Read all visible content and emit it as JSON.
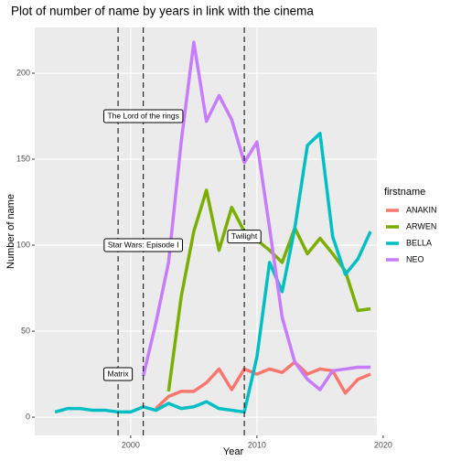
{
  "chart_data": {
    "type": "line",
    "title": "Plot of number of name by years in link with the cinema",
    "x_label": "Year",
    "y_label": "Number of name",
    "legend_title": "firstname",
    "x": [
      1994,
      1995,
      1996,
      1997,
      1998,
      1999,
      2000,
      2001,
      2002,
      2003,
      2004,
      2005,
      2006,
      2007,
      2008,
      2009,
      2010,
      2011,
      2012,
      2013,
      2014,
      2015,
      2016,
      2017,
      2018,
      2019
    ],
    "series": [
      {
        "name": "ANAKIN",
        "color": "#F8766D",
        "values": [
          null,
          null,
          null,
          null,
          null,
          null,
          null,
          null,
          5,
          12,
          15,
          15,
          20,
          28,
          16,
          28,
          25,
          28,
          26,
          32,
          25,
          28,
          27,
          14,
          22,
          25
        ]
      },
      {
        "name": "ARWEN",
        "color": "#7CAE00",
        "values": [
          null,
          null,
          null,
          null,
          null,
          null,
          null,
          null,
          null,
          15,
          70,
          108,
          132,
          97,
          122,
          108,
          103,
          97,
          90,
          110,
          95,
          104,
          95,
          85,
          62,
          63
        ]
      },
      {
        "name": "BELLA",
        "color": "#00BFC4",
        "values": [
          3,
          5,
          5,
          4,
          4,
          3,
          3,
          6,
          4,
          8,
          5,
          6,
          9,
          5,
          4,
          3,
          35,
          90,
          73,
          110,
          158,
          165,
          105,
          83,
          92,
          108
        ]
      },
      {
        "name": "NEO",
        "color": "#C77CFF",
        "values": [
          null,
          null,
          null,
          null,
          null,
          null,
          null,
          24,
          55,
          90,
          160,
          218,
          172,
          187,
          173,
          148,
          160,
          110,
          58,
          32,
          22,
          16,
          27,
          28,
          29,
          29
        ]
      }
    ],
    "vlines": [
      1999,
      2001,
      2009
    ],
    "annotations": [
      {
        "text": "Matrix",
        "x": 1999,
        "y": 25
      },
      {
        "text": "Star Wars: Episode I",
        "x": 2001,
        "y": 100
      },
      {
        "text": "The Lord of the rings",
        "x": 2001,
        "y": 175
      },
      {
        "text": "Twilight",
        "x": 2009,
        "y": 105
      }
    ],
    "xlim": [
      1992.4,
      2019.5
    ],
    "xticks": [
      2000,
      2010,
      2020
    ],
    "ylim": [
      -10.6,
      226.6
    ],
    "yticks": [
      0,
      50,
      100,
      150,
      200
    ],
    "grid": true,
    "legend": "right"
  }
}
